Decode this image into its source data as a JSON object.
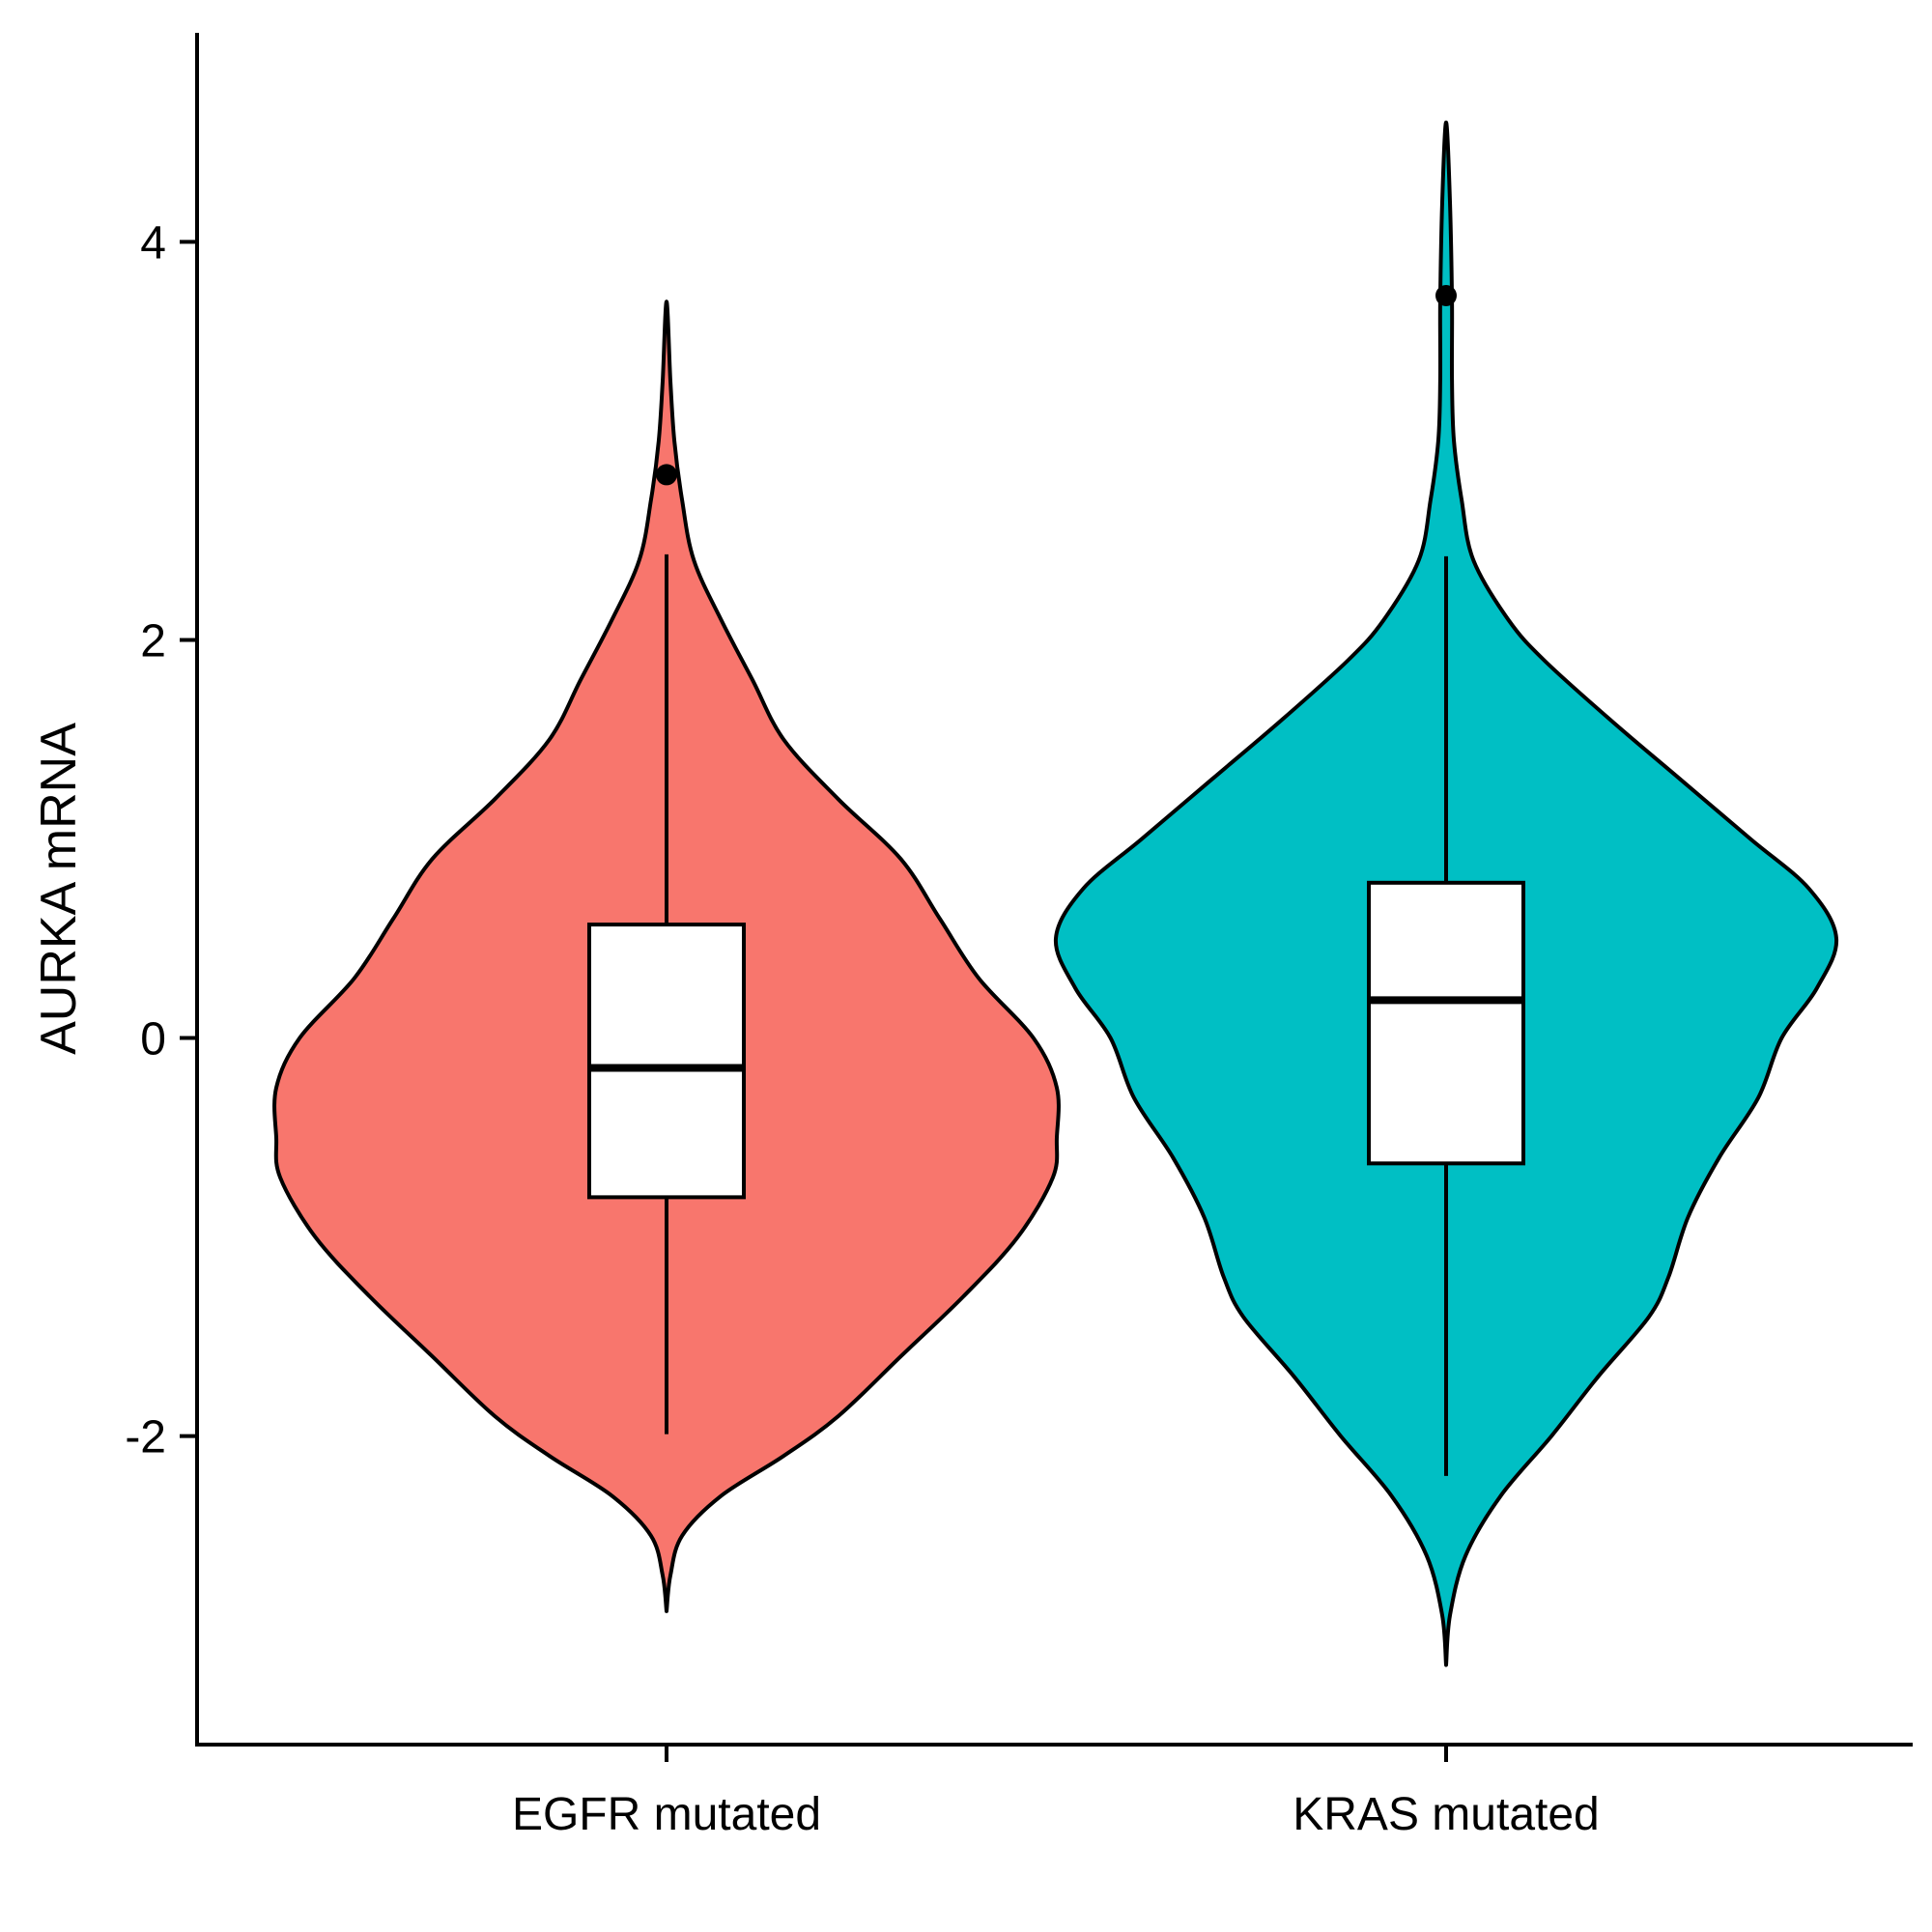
{
  "chart_data": {
    "type": "violin",
    "xlabel": "",
    "ylabel": "AURKA mRNA",
    "ylim": [
      -3.55,
      5.05
    ],
    "yticks": [
      -2,
      0,
      2,
      4
    ],
    "ytick_labels": [
      "-2",
      "0",
      "2",
      "4"
    ],
    "grid": false,
    "legend": "none",
    "categories": [
      "EGFR mutated",
      "KRAS mutated"
    ],
    "groups": [
      {
        "name": "EGFR mutated",
        "color": "#F8766D",
        "box": {
          "whisker_low": -1.99,
          "q1": -0.8,
          "median": -0.15,
          "q3": 0.57,
          "whisker_high": 2.43
        },
        "outliers": [
          2.83
        ],
        "density": [
          [
            -2.88,
            0.0
          ],
          [
            -2.7,
            0.01
          ],
          [
            -2.5,
            0.04
          ],
          [
            -2.3,
            0.14
          ],
          [
            -2.1,
            0.3
          ],
          [
            -1.9,
            0.44
          ],
          [
            -1.6,
            0.6
          ],
          [
            -1.3,
            0.76
          ],
          [
            -1.0,
            0.9
          ],
          [
            -0.7,
            0.99
          ],
          [
            -0.5,
            1.0
          ],
          [
            -0.25,
            1.0
          ],
          [
            0.0,
            0.94
          ],
          [
            0.3,
            0.8
          ],
          [
            0.6,
            0.7
          ],
          [
            0.9,
            0.6
          ],
          [
            1.2,
            0.44
          ],
          [
            1.5,
            0.3
          ],
          [
            1.8,
            0.22
          ],
          [
            2.1,
            0.14
          ],
          [
            2.4,
            0.07
          ],
          [
            2.7,
            0.04
          ],
          [
            3.0,
            0.02
          ],
          [
            3.3,
            0.01
          ],
          [
            3.7,
            0.0
          ]
        ]
      },
      {
        "name": "KRAS mutated",
        "color": "#00BFC4",
        "box": {
          "whisker_low": -2.2,
          "q1": -0.63,
          "median": 0.19,
          "q3": 0.78,
          "whisker_high": 2.42
        },
        "outliers": [
          3.73
        ],
        "density": [
          [
            -3.15,
            0.0
          ],
          [
            -2.9,
            0.01
          ],
          [
            -2.6,
            0.05
          ],
          [
            -2.3,
            0.14
          ],
          [
            -2.0,
            0.27
          ],
          [
            -1.7,
            0.39
          ],
          [
            -1.4,
            0.52
          ],
          [
            -1.2,
            0.57
          ],
          [
            -0.9,
            0.62
          ],
          [
            -0.6,
            0.7
          ],
          [
            -0.3,
            0.8
          ],
          [
            0.0,
            0.86
          ],
          [
            0.25,
            0.95
          ],
          [
            0.5,
            1.0
          ],
          [
            0.75,
            0.93
          ],
          [
            1.0,
            0.78
          ],
          [
            1.3,
            0.6
          ],
          [
            1.6,
            0.42
          ],
          [
            1.9,
            0.25
          ],
          [
            2.1,
            0.16
          ],
          [
            2.4,
            0.07
          ],
          [
            2.7,
            0.04
          ],
          [
            3.0,
            0.02
          ],
          [
            3.3,
            0.015
          ],
          [
            3.7,
            0.015
          ],
          [
            4.2,
            0.01
          ],
          [
            4.6,
            0.0
          ]
        ]
      }
    ]
  }
}
